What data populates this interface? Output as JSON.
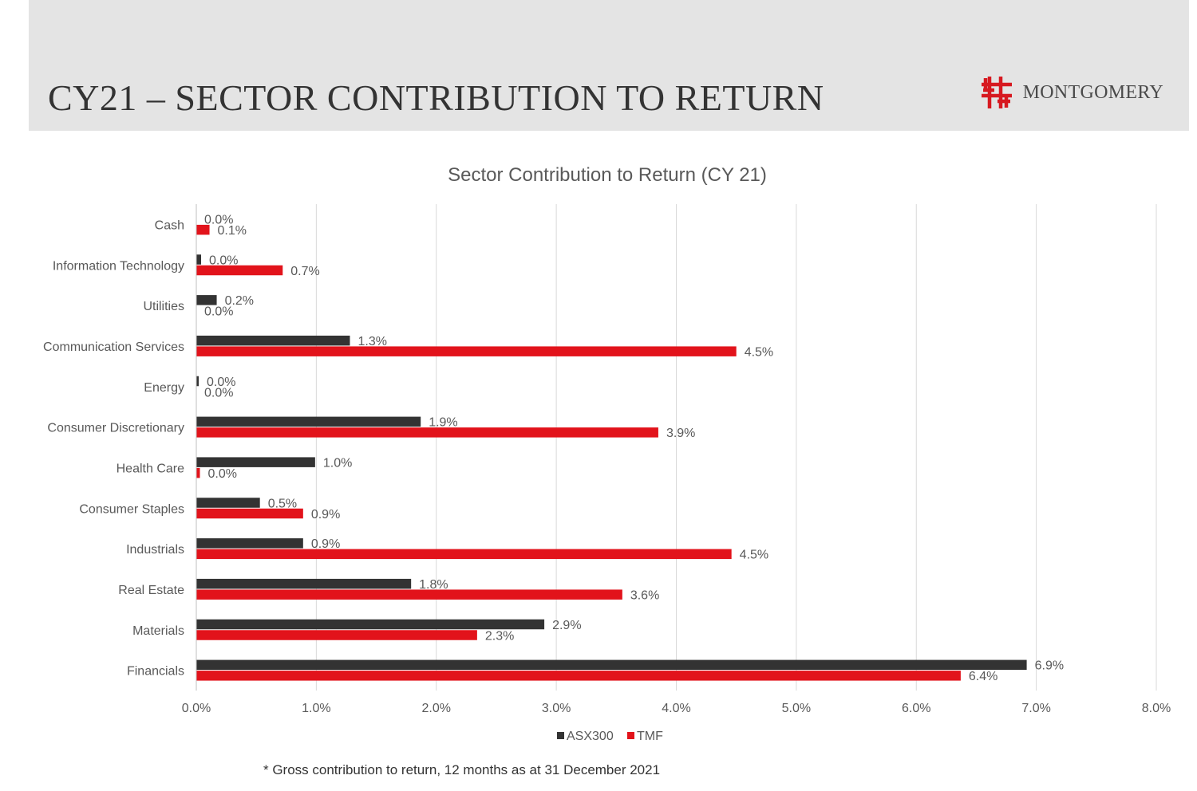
{
  "slide": {
    "title": "CY21 – SECTOR CONTRIBUTION TO RETURN",
    "brand_name": "MONTGOMERY",
    "footnote": "* Gross contribution to return, 12 months as at 31 December 2021"
  },
  "colors": {
    "header_bg": "#e4e4e4",
    "brand_red": "#d71920",
    "asx300": "#333333",
    "tmf": "#e2131b",
    "gridline": "#d9d9d9",
    "text": "#595959"
  },
  "chart_data": {
    "type": "bar",
    "orientation": "horizontal",
    "title": "Sector Contribution to Return (CY 21)",
    "categories": [
      "Cash",
      "Information Technology",
      "Utilities",
      "Communication Services",
      "Energy",
      "Consumer Discretionary",
      "Health Care",
      "Consumer Staples",
      "Industrials",
      "Real Estate",
      "Materials",
      "Financials"
    ],
    "series": [
      {
        "name": "ASX300",
        "color": "#333333",
        "values": [
          0.0,
          0.04,
          0.17,
          1.28,
          0.02,
          1.87,
          0.99,
          0.53,
          0.89,
          1.79,
          2.9,
          6.92
        ],
        "labels": [
          "0.0%",
          "0.0%",
          "0.2%",
          "1.3%",
          "0.0%",
          "1.9%",
          "1.0%",
          "0.5%",
          "0.9%",
          "1.8%",
          "2.9%",
          "6.9%"
        ]
      },
      {
        "name": "TMF",
        "color": "#e2131b",
        "values": [
          0.11,
          0.72,
          0.0,
          4.5,
          0.0,
          3.85,
          0.03,
          0.89,
          4.46,
          3.55,
          2.34,
          6.37
        ],
        "labels": [
          "0.1%",
          "0.7%",
          "0.0%",
          "4.5%",
          "0.0%",
          "3.9%",
          "0.0%",
          "0.9%",
          "4.5%",
          "3.6%",
          "2.3%",
          "6.4%"
        ]
      }
    ],
    "xlim": [
      0,
      8
    ],
    "xticks": [
      "0.0%",
      "1.0%",
      "2.0%",
      "3.0%",
      "4.0%",
      "5.0%",
      "6.0%",
      "7.0%",
      "8.0%"
    ],
    "grid": true,
    "legend_position": "bottom"
  }
}
